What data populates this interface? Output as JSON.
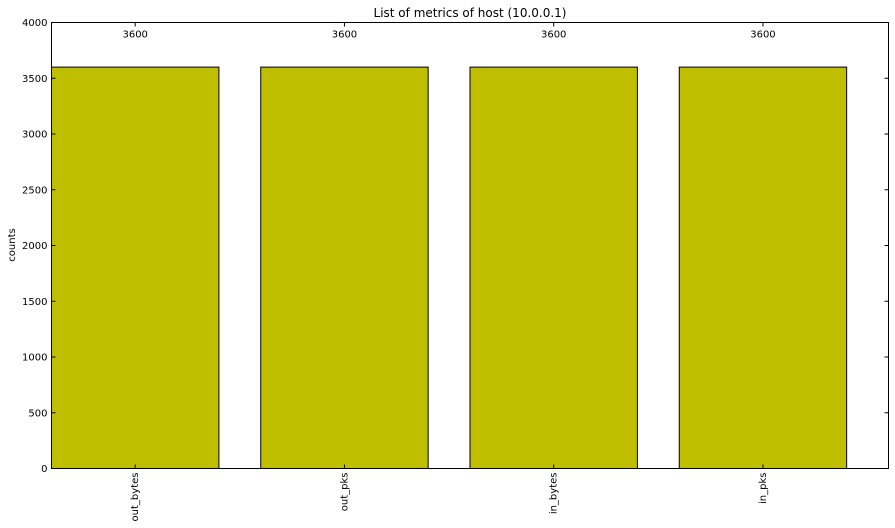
{
  "chart_data": {
    "type": "bar",
    "title": "List of metrics of host (10.0.0.1)",
    "xlabel": "",
    "ylabel": "counts",
    "categories": [
      "out_bytes",
      "out_pks",
      "in_bytes",
      "in_pks"
    ],
    "values": [
      3600,
      3600,
      3600,
      3600
    ],
    "data_labels": [
      "3600",
      "3600",
      "3600",
      "3600"
    ],
    "ylim": [
      0,
      4000
    ],
    "yticks": [
      0,
      500,
      1000,
      1500,
      2000,
      2500,
      3000,
      3500,
      4000
    ],
    "ytick_labels": [
      "0",
      "500",
      "1000",
      "1500",
      "2000",
      "2500",
      "3000",
      "3500",
      "4000"
    ],
    "grid": false,
    "legend": "none",
    "bar_color": "#bfbf00",
    "edge_color": "#000000"
  }
}
